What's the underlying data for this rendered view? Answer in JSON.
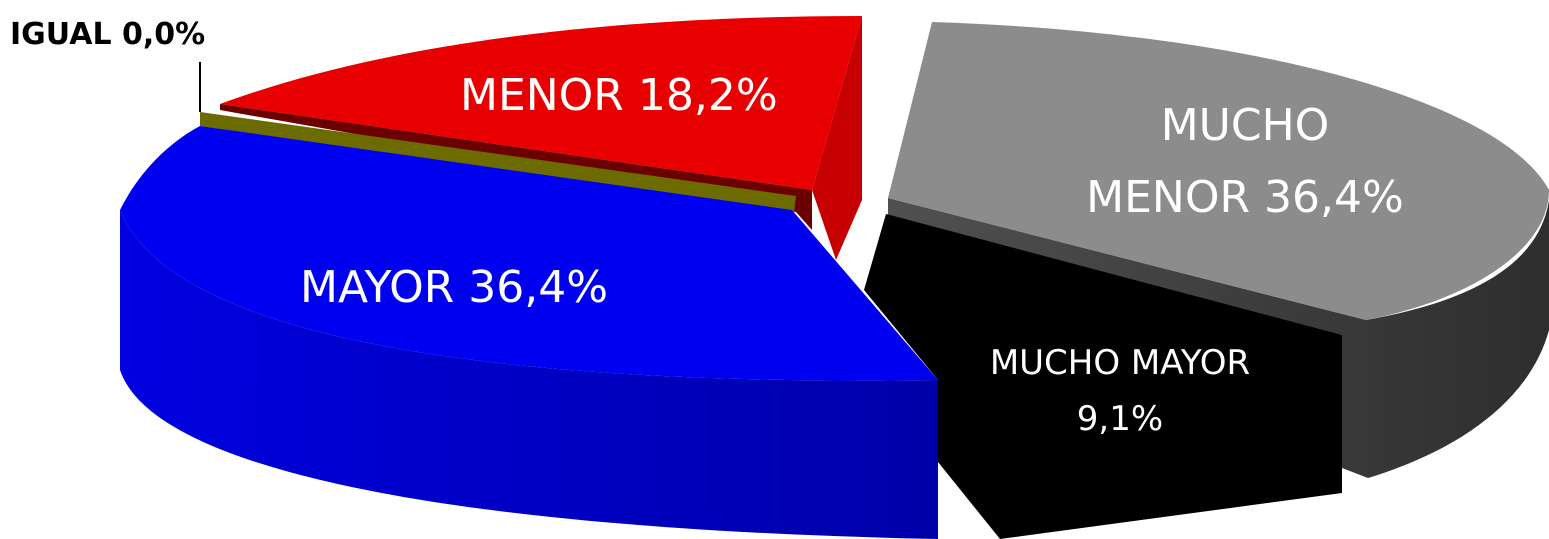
{
  "chart_data": {
    "type": "pie",
    "style": "3d-exploded",
    "slices": [
      {
        "key": "menor",
        "label": "MENOR 18,2%",
        "value": 18.2,
        "color": "#E80000",
        "side_color": "#B20000",
        "label_color": "#FFFFFF"
      },
      {
        "key": "mucho_menor",
        "label_lines": [
          "MUCHO",
          "MENOR 36,4%"
        ],
        "value": 36.4,
        "color": "#8C8C8C",
        "side_color": "#3E3E3E",
        "label_color": "#FFFFFF"
      },
      {
        "key": "mucho_mayor",
        "label_lines": [
          "MUCHO MAYOR",
          "9,1%"
        ],
        "value": 9.1,
        "color": "#000000",
        "side_color": "#000000",
        "label_color": "#FFFFFF"
      },
      {
        "key": "mayor",
        "label": "MAYOR 36,4%",
        "value": 36.4,
        "color": "#0000E6",
        "side_color": "#0000B0",
        "label_color": "#FFFFFF"
      },
      {
        "key": "igual",
        "label": "IGUAL 0,0%",
        "value": 0.0,
        "color": "#6B6B00",
        "side_color": "#555500",
        "label_color": "#000000"
      }
    ]
  }
}
